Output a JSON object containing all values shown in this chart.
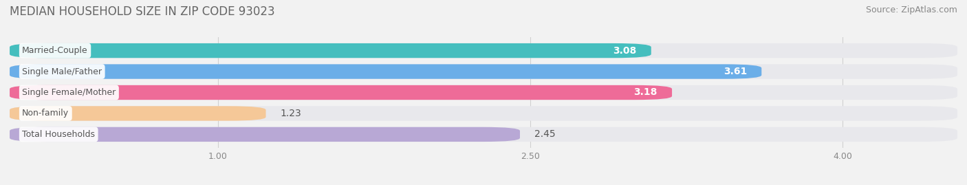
{
  "title": "MEDIAN HOUSEHOLD SIZE IN ZIP CODE 93023",
  "source": "Source: ZipAtlas.com",
  "categories": [
    "Married-Couple",
    "Single Male/Father",
    "Single Female/Mother",
    "Non-family",
    "Total Households"
  ],
  "values": [
    3.08,
    3.61,
    3.18,
    1.23,
    2.45
  ],
  "bar_colors": [
    "#45BEBE",
    "#6BAEE8",
    "#EE6B98",
    "#F5C898",
    "#B8A8D5"
  ],
  "label_colors": [
    "white",
    "white",
    "white",
    "dark",
    "dark"
  ],
  "xlim_min": 0.0,
  "xlim_max": 4.55,
  "data_min": 0.0,
  "xticks": [
    1.0,
    2.5,
    4.0
  ],
  "background_color": "#f2f2f2",
  "bar_bg_color": "#e8e8ec",
  "bar_height": 0.7,
  "title_fontsize": 12,
  "source_fontsize": 9,
  "value_label_fontsize": 10,
  "category_fontsize": 9,
  "label_box_color": "white",
  "label_text_color": "#555555",
  "value_label_dark_color": "#555555"
}
